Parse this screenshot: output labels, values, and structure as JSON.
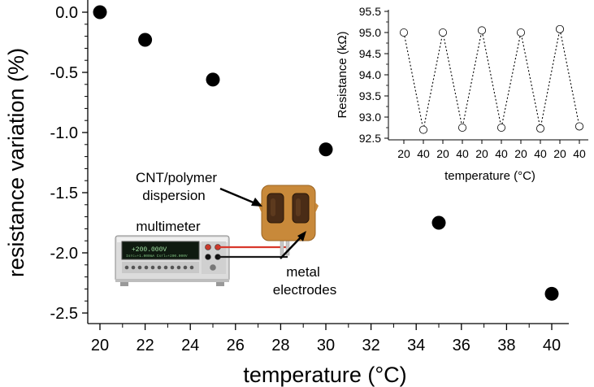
{
  "chart_data": [
    {
      "type": "scatter",
      "xlabel": "temperature (°C)",
      "ylabel": "resistance variation (%)",
      "xlim": [
        20,
        40
      ],
      "ylim": [
        -2.6,
        0.05
      ],
      "xticks": [
        20,
        22,
        24,
        26,
        28,
        30,
        32,
        34,
        36,
        38,
        40
      ],
      "xtick_labels": [
        "20",
        "22",
        "24",
        "26",
        "28",
        "30",
        "32",
        "34",
        "36",
        "38",
        "40"
      ],
      "yticks": [
        0.0,
        -0.5,
        -1.0,
        -1.5,
        -2.0,
        -2.5
      ],
      "ytick_labels": [
        "0.0",
        "-0.5",
        "-1.0",
        "-1.5",
        "-2.0",
        "-2.5"
      ],
      "grid": false,
      "marker": "filled-circle",
      "points": [
        {
          "x": 20,
          "y": 0.0
        },
        {
          "x": 22,
          "y": -0.23
        },
        {
          "x": 25,
          "y": -0.56
        },
        {
          "x": 30,
          "y": -1.14
        },
        {
          "x": 35,
          "y": -1.75
        },
        {
          "x": 40,
          "y": -2.34
        }
      ]
    },
    {
      "type": "line",
      "xlabel": "temperature (°C)",
      "ylabel": "Resistance (kΩ)",
      "categories": [
        "20",
        "40",
        "20",
        "40",
        "20",
        "40",
        "20",
        "40",
        "20",
        "40"
      ],
      "ylim": [
        92.5,
        95.5
      ],
      "yticks": [
        92.5,
        93.0,
        93.5,
        94.0,
        94.5,
        95.0,
        95.5
      ],
      "ytick_labels": [
        "92.5",
        "93.0",
        "93.5",
        "94.0",
        "94.5",
        "95.0",
        "95.5"
      ],
      "grid": false,
      "line_style": "dotted",
      "marker": "open-circle",
      "values": [
        95.0,
        92.7,
        95.0,
        92.75,
        95.05,
        92.75,
        95.0,
        92.73,
        95.08,
        92.78
      ]
    }
  ],
  "annotations": {
    "dispersion": "CNT/polymer dispersion",
    "dispersion_line1": "CNT/polymer",
    "dispersion_line2": "dispersion",
    "multimeter": "multimeter",
    "electrodes_line1": "metal",
    "electrodes_line2": "electrodes"
  },
  "colors": {
    "marker": "#000000",
    "probe_red": "#d8382c",
    "probe_black": "#1a1a1a",
    "sample": "#c8893a",
    "meter_body": "#d4d4d4"
  }
}
